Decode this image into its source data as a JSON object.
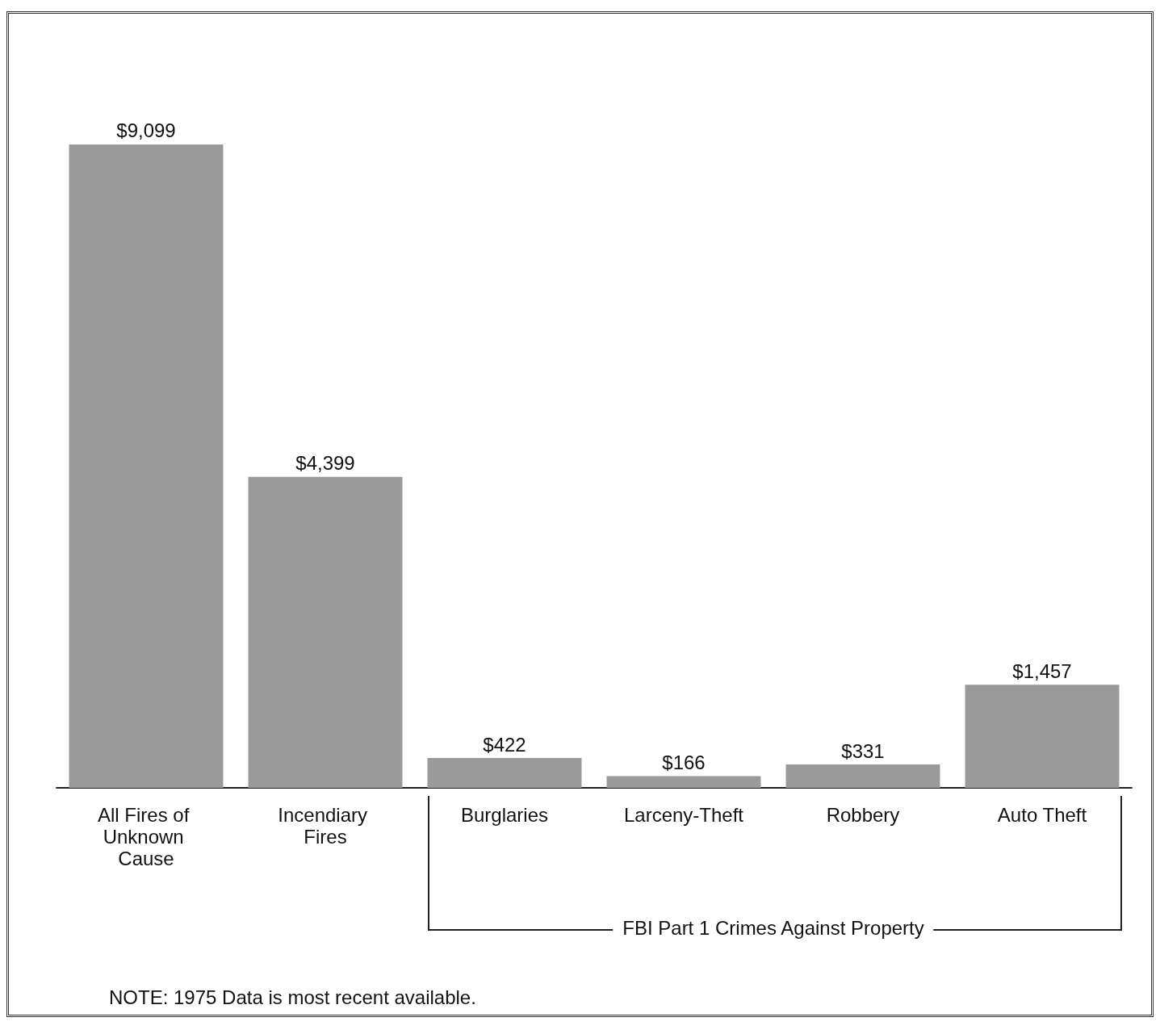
{
  "chart_data": {
    "type": "bar",
    "categories": [
      "All Fires of Unknown Cause",
      "Incendiary Fires",
      "Burglaries",
      "Larceny-Theft",
      "Robbery",
      "Auto Theft"
    ],
    "values": [
      9099,
      4399,
      422,
      166,
      331,
      1457
    ],
    "value_labels": [
      "$9,099",
      "$4,399",
      "$422",
      "$166",
      "$331",
      "$1,457"
    ],
    "color": "#9a9a9a",
    "annotations": [
      "FBI Part 1 Crimes Against Property",
      "NOTE: 1975 Data is most recent available."
    ]
  }
}
